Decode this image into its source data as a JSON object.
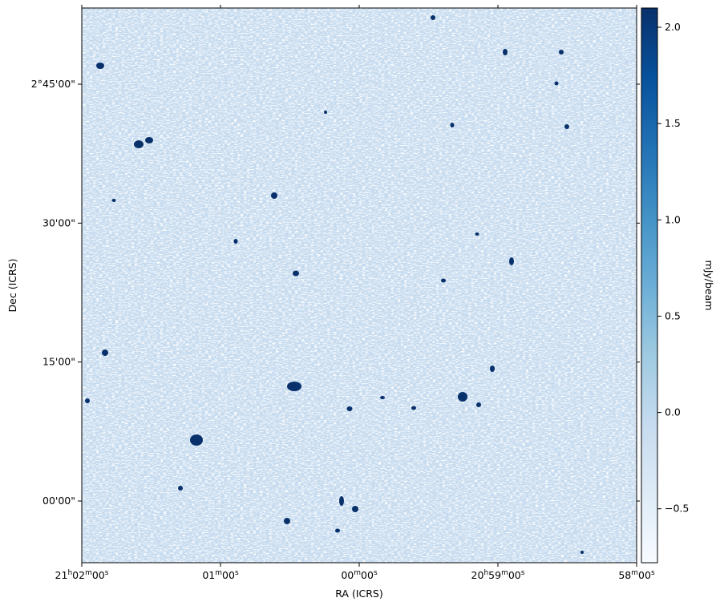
{
  "chart_data": {
    "type": "image",
    "xlabel": "RA (ICRS)",
    "ylabel": "Dec (ICRS)",
    "colorbar_label": "mJy/beam",
    "xlim": [
      315.5,
      314.5
    ],
    "xticks": [
      {
        "value": 315.5,
        "label": "21h02m00s"
      },
      {
        "value": 315.25,
        "label": "01m00s"
      },
      {
        "value": 315.0,
        "label": "00m00s"
      },
      {
        "value": 314.75,
        "label": "20h59m00s"
      },
      {
        "value": 314.5,
        "label": "58m00s"
      }
    ],
    "ylim": [
      1.889,
      2.887
    ],
    "yticks": [
      {
        "value": 2.75,
        "label": "2°45'00\""
      },
      {
        "value": 2.5,
        "label": "30'00\""
      },
      {
        "value": 2.25,
        "label": "15'00\""
      },
      {
        "value": 2.0,
        "label": "00'00\""
      }
    ],
    "clim": [
      -0.78,
      2.1
    ],
    "cticks": [
      {
        "value": -0.5,
        "label": "−0.5"
      },
      {
        "value": 0.0,
        "label": "0.0"
      },
      {
        "value": 0.5,
        "label": "0.5"
      },
      {
        "value": 1.0,
        "label": "1.0"
      },
      {
        "value": 1.5,
        "label": "1.5"
      },
      {
        "value": 2.0,
        "label": "2.0"
      }
    ],
    "colormap": [
      "#f7fbff",
      "#deebf7",
      "#c6dbef",
      "#9ecae1",
      "#6baed6",
      "#4292c6",
      "#2171b5",
      "#08519c",
      "#08306b"
    ]
  }
}
